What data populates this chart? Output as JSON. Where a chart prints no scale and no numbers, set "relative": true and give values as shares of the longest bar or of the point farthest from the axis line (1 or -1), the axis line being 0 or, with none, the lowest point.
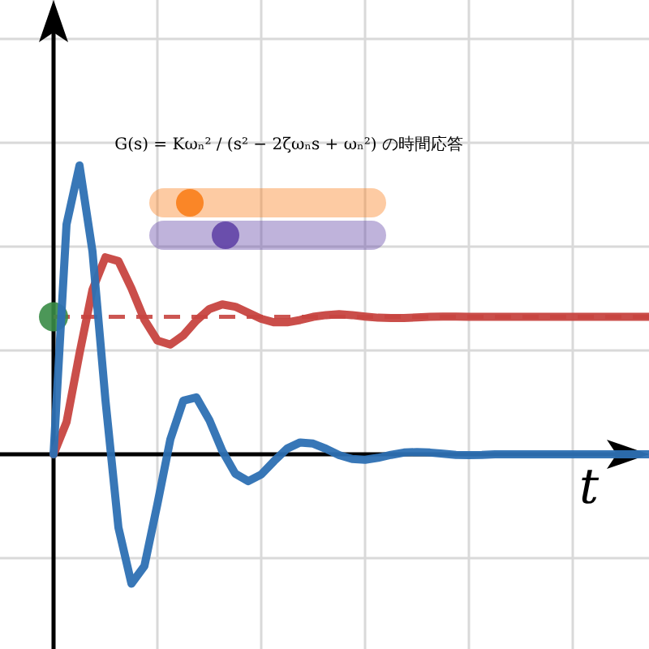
{
  "chart_data": {
    "type": "line",
    "title": "G(s) = Kωₙ² / (s² − 2ζωₙs + ωₙ²) の時間応答",
    "xlabel": "t",
    "relative": true,
    "grid": true,
    "marker": "none",
    "categories": [
      null,
      null,
      null,
      null,
      null,
      null,
      null,
      null,
      null,
      null,
      null,
      null,
      null,
      null,
      null,
      null,
      null,
      null,
      null,
      null,
      null,
      null,
      null,
      null,
      null,
      null,
      null,
      null,
      null,
      null,
      null,
      null,
      null,
      null,
      null,
      null,
      null,
      null,
      null,
      null,
      null,
      null,
      null,
      null,
      null,
      null,
      null
    ],
    "series": [
      {
        "color": "#c74440",
        "values": [
          0,
          0.111,
          0.349,
          0.57,
          0.682,
          0.669,
          0.575,
          0.466,
          0.394,
          0.38,
          0.412,
          0.463,
          0.503,
          0.519,
          0.511,
          0.49,
          0.469,
          0.457,
          0.457,
          0.465,
          0.476,
          0.482,
          0.485,
          0.482,
          0.477,
          0.473,
          0.472,
          0.472,
          0.474,
          0.476,
          0.477,
          0.477,
          0.476,
          0.476,
          0.476,
          0.476,
          0.476,
          0.476,
          0.476,
          0.476,
          0.476,
          0.476,
          0.476,
          0.476,
          0.476,
          0.476,
          0.476
        ]
      },
      {
        "color": "#2d70b3",
        "values": [
          0,
          0.796,
          1,
          0.702,
          0.187,
          -0.254,
          -0.448,
          -0.387,
          -0.173,
          0.052,
          0.186,
          0.197,
          0.119,
          0.012,
          -0.067,
          -0.093,
          -0.07,
          -0.023,
          0.02,
          0.041,
          0.037,
          0.019,
          -0.003,
          -0.016,
          -0.019,
          -0.012,
          -0.002,
          0.006,
          0.008,
          0.006,
          0.002,
          -0.002,
          -0.003,
          -0.002,
          0,
          0,
          0,
          0,
          0,
          0,
          0,
          0,
          0,
          0,
          0,
          0,
          0
        ]
      }
    ],
    "ref_lines": [
      {
        "axis": "y",
        "value": 0.476,
        "color": "#c74440",
        "line_style": "dashed"
      }
    ]
  }
}
